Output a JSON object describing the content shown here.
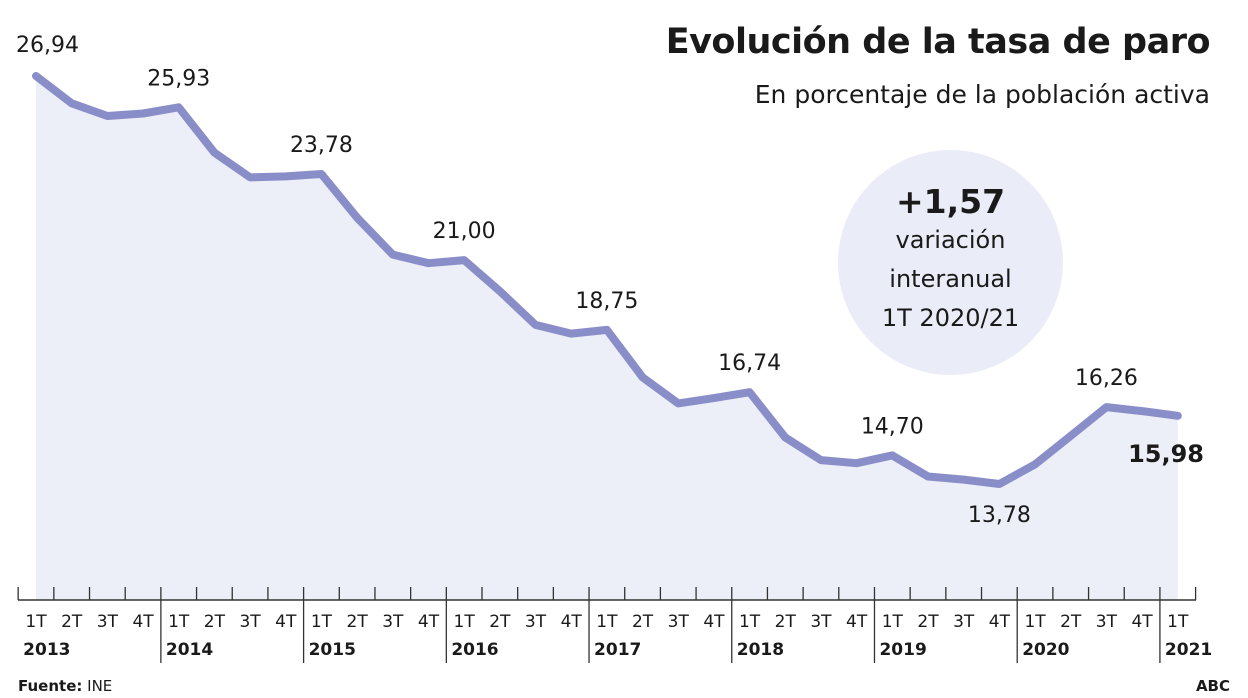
{
  "title": "Evolución de la tasa de paro",
  "subtitle": "En porcentaje de la población activa",
  "callout": {
    "value": "+1,57",
    "lines": [
      "variación",
      "interanual",
      "1T 2020/21"
    ]
  },
  "source_label": "Fuente:",
  "source_value": "INE",
  "brand": "ABC",
  "colors": {
    "line": "#8a8ec8",
    "fill": "#eceef8",
    "text": "#1a1a1a"
  },
  "chart_data": {
    "type": "area",
    "ylabel": "",
    "xlabel": "",
    "ylim": [
      10.4,
      28
    ],
    "grid": false,
    "quarters": [
      "1T",
      "2T",
      "3T",
      "4T"
    ],
    "years": [
      "2013",
      "2014",
      "2015",
      "2016",
      "2017",
      "2018",
      "2019",
      "2020",
      "2021"
    ],
    "x": [
      "1T 2013",
      "2T 2013",
      "3T 2013",
      "4T 2013",
      "1T 2014",
      "2T 2014",
      "3T 2014",
      "4T 2014",
      "1T 2015",
      "2T 2015",
      "3T 2015",
      "4T 2015",
      "1T 2016",
      "2T 2016",
      "3T 2016",
      "4T 2016",
      "1T 2017",
      "2T 2017",
      "3T 2017",
      "4T 2017",
      "1T 2018",
      "2T 2018",
      "3T 2018",
      "4T 2018",
      "1T 2019",
      "2T 2019",
      "3T 2019",
      "4T 2019",
      "1T 2020",
      "2T 2020",
      "3T 2020",
      "4T 2020",
      "1T 2021"
    ],
    "values": [
      26.94,
      26.06,
      25.65,
      25.73,
      25.93,
      24.47,
      23.67,
      23.7,
      23.78,
      22.37,
      21.18,
      20.9,
      21.0,
      20.0,
      18.91,
      18.63,
      18.75,
      17.22,
      16.38,
      16.55,
      16.74,
      15.28,
      14.55,
      14.45,
      14.7,
      14.02,
      13.92,
      13.78,
      14.41,
      15.33,
      16.26,
      16.13,
      15.98
    ],
    "data_labels": [
      {
        "index": 0,
        "text": "26,94",
        "bold": false
      },
      {
        "index": 4,
        "text": "25,93",
        "bold": false
      },
      {
        "index": 8,
        "text": "23,78",
        "bold": false
      },
      {
        "index": 12,
        "text": "21,00",
        "bold": false
      },
      {
        "index": 16,
        "text": "18,75",
        "bold": false
      },
      {
        "index": 20,
        "text": "16,74",
        "bold": false
      },
      {
        "index": 24,
        "text": "14,70",
        "bold": false
      },
      {
        "index": 27,
        "text": "13,78",
        "bold": false
      },
      {
        "index": 30,
        "text": "16,26",
        "bold": false
      },
      {
        "index": 32,
        "text": "15,98",
        "bold": true
      }
    ]
  }
}
